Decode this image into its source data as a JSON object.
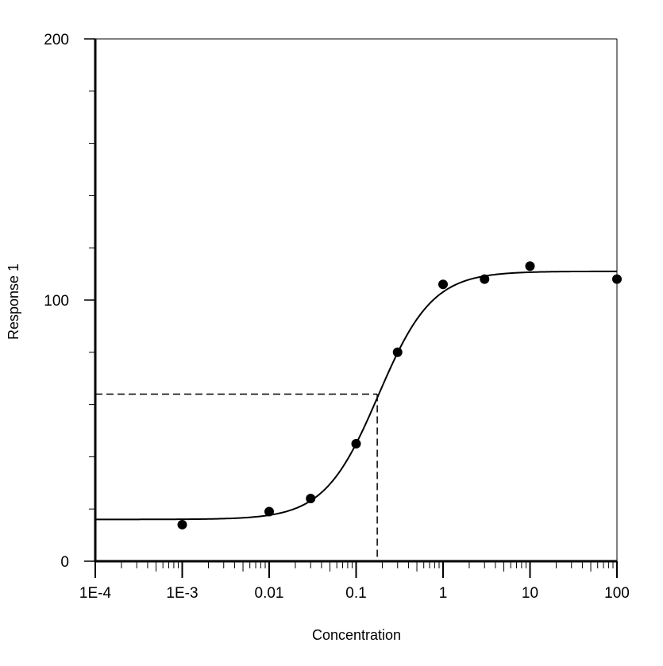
{
  "chart_data": {
    "type": "scatter",
    "xlabel": "Concentration",
    "ylabel": "Response 1",
    "x_scale": "log",
    "xlim": [
      0.0001,
      100
    ],
    "ylim": [
      0,
      200
    ],
    "x_ticks": [
      {
        "value": 0.0001,
        "label": "1E-4"
      },
      {
        "value": 0.001,
        "label": "1E-3"
      },
      {
        "value": 0.01,
        "label": "0.01"
      },
      {
        "value": 0.1,
        "label": "0.1"
      },
      {
        "value": 1,
        "label": "1"
      },
      {
        "value": 10,
        "label": "10"
      },
      {
        "value": 100,
        "label": "100"
      }
    ],
    "y_ticks": [
      {
        "value": 0,
        "label": "0"
      },
      {
        "value": 100,
        "label": "100"
      },
      {
        "value": 200,
        "label": "200"
      }
    ],
    "y_minor_ticks": [
      20,
      40,
      60,
      80,
      120,
      140,
      160,
      180
    ],
    "points": [
      {
        "x": 0.001,
        "y": 14
      },
      {
        "x": 0.01,
        "y": 19
      },
      {
        "x": 0.03,
        "y": 24
      },
      {
        "x": 0.1,
        "y": 45
      },
      {
        "x": 0.3,
        "y": 80
      },
      {
        "x": 1,
        "y": 106
      },
      {
        "x": 3,
        "y": 108
      },
      {
        "x": 10,
        "y": 113
      },
      {
        "x": 100,
        "y": 108
      }
    ],
    "fit": {
      "model": "4PL",
      "bottom": 16,
      "top": 111,
      "ec50": 0.18,
      "hill": 1.4
    },
    "ec50_marker": {
      "x": 0.175,
      "y": 64
    },
    "grid": false,
    "legend": "none"
  }
}
